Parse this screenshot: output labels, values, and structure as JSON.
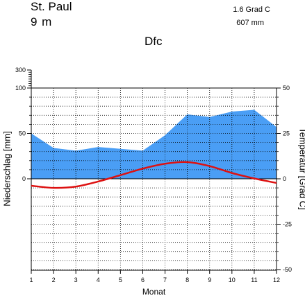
{
  "header": {
    "station": "St. Paul",
    "elevation": "9  m",
    "climate_class": "Dfc",
    "mean_temp": "1.6 Grad C",
    "annual_precip": "607 mm"
  },
  "chart_data": {
    "type": "area",
    "x": [
      1,
      2,
      3,
      4,
      5,
      6,
      7,
      8,
      9,
      10,
      11,
      12
    ],
    "xlabel": "Monat",
    "ylabel_left": "Niederschlag [mm]",
    "ylabel_right": "Temperatur [Grad C]",
    "left_ticks": [
      "300",
      "100",
      "50",
      "0"
    ],
    "right_ticks": [
      "50",
      "25",
      "0",
      "-25",
      "-50"
    ],
    "x_ticks": [
      "1",
      "2",
      "3",
      "4",
      "5",
      "6",
      "7",
      "8",
      "9",
      "10",
      "11",
      "12"
    ],
    "ylim_temp": [
      -50,
      50
    ],
    "grid": true,
    "series": [
      {
        "name": "",
        "kind": "precipitation",
        "color": "#4a9ef5",
        "values": [
          50,
          34,
          31,
          35,
          33,
          31,
          48,
          71,
          68,
          74,
          76,
          57
        ]
      },
      {
        "name": "",
        "kind": "temperature",
        "color": "#dd1111",
        "values": [
          -3.8,
          -5,
          -4.3,
          -1.5,
          2,
          5.6,
          8.3,
          9.2,
          7,
          3.2,
          0.2,
          -2.3
        ]
      }
    ]
  }
}
